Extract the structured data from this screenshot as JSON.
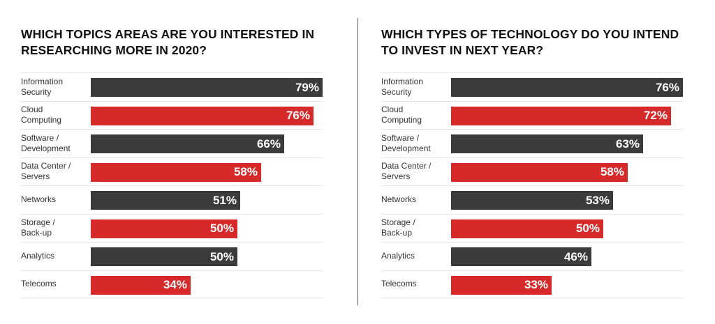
{
  "chart_data": [
    {
      "type": "bar",
      "orientation": "horizontal",
      "title": "WHICH TOPICS AREAS ARE YOU INTERESTED IN RESEARCHING MORE IN 2020?",
      "categories": [
        "Information\nSecurity",
        "Cloud\nComputing",
        "Software /\nDevelopment",
        "Data Center /\nServers",
        "Networks",
        "Storage /\nBack-up",
        "Analytics",
        "Telecoms"
      ],
      "values": [
        79,
        76,
        66,
        58,
        51,
        50,
        50,
        34
      ],
      "value_labels": [
        "79%",
        "76%",
        "66%",
        "58%",
        "51%",
        "50%",
        "50%",
        "34%"
      ],
      "bar_colors": [
        "#3b3b3b",
        "#d62a2a",
        "#3b3b3b",
        "#d62a2a",
        "#3b3b3b",
        "#d62a2a",
        "#3b3b3b",
        "#d62a2a"
      ],
      "xlim": [
        0,
        79
      ]
    },
    {
      "type": "bar",
      "orientation": "horizontal",
      "title": "WHICH TYPES OF TECHNOLOGY DO YOU INTEND TO INVEST IN NEXT YEAR?",
      "categories": [
        "Information\nSecurity",
        "Cloud\nComputing",
        "Software /\nDevelopment",
        "Data Center /\nServers",
        "Networks",
        "Storage /\nBack-up",
        "Analytics",
        "Telecoms"
      ],
      "values": [
        76,
        72,
        63,
        58,
        53,
        50,
        46,
        33
      ],
      "value_labels": [
        "76%",
        "72%",
        "63%",
        "58%",
        "53%",
        "50%",
        "46%",
        "33%"
      ],
      "bar_colors": [
        "#3b3b3b",
        "#d62a2a",
        "#3b3b3b",
        "#d62a2a",
        "#3b3b3b",
        "#d62a2a",
        "#3b3b3b",
        "#d62a2a"
      ],
      "xlim": [
        0,
        76
      ]
    }
  ]
}
